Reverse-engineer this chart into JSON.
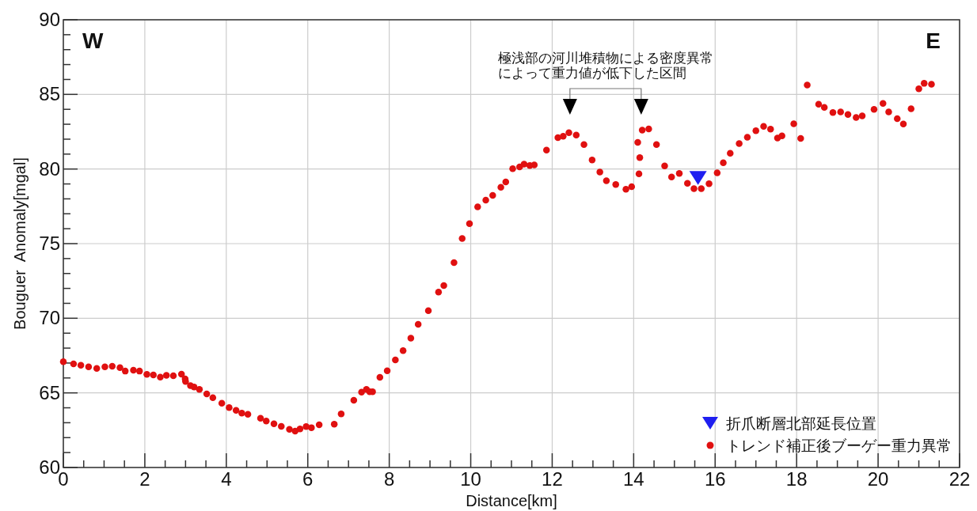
{
  "chart_data": {
    "type": "scatter",
    "xlabel": "Distance[km]",
    "ylabel": "Bouguer  Anomaly[mgal]",
    "xlim": [
      0,
      22
    ],
    "xticks": [
      0,
      2,
      4,
      6,
      8,
      10,
      12,
      14,
      16,
      18,
      20,
      22
    ],
    "ylim": [
      60,
      90
    ],
    "yticks": [
      60,
      65,
      70,
      75,
      80,
      85,
      90
    ],
    "grid": true,
    "legend": "bottom right",
    "annotations": [
      "W",
      "E",
      "極浅部の河川堆積物による密度異常によって重力値が低下した区間"
    ],
    "series": [
      {
        "name": "折爪断層北部延長位置",
        "color": "#1f1ff0",
        "marker": "triangle",
        "x": [
          15.58
        ],
        "values": [
          79.4
        ]
      },
      {
        "name": "トレンド補正後ブーゲー重力異常",
        "color": "#e01010",
        "marker": "circle",
        "x": [
          0,
          0.25,
          0.43,
          0.62,
          0.82,
          1.02,
          1.2,
          1.39,
          1.52,
          1.72,
          1.87,
          2.05,
          2.21,
          2.38,
          2.53,
          2.7,
          2.9,
          2.99,
          3.0,
          3.12,
          3.21,
          3.34,
          3.52,
          3.67,
          3.89,
          4.07,
          4.24,
          4.38,
          4.53,
          4.84,
          4.98,
          5.17,
          5.35,
          5.55,
          5.69,
          5.81,
          5.96,
          6.09,
          6.28,
          6.65,
          6.82,
          7.13,
          7.32,
          7.44,
          7.52,
          7.59,
          7.77,
          7.95,
          8.15,
          8.34,
          8.53,
          8.71,
          8.96,
          9.21,
          9.34,
          9.59,
          9.79,
          9.97,
          10.17,
          10.37,
          10.54,
          10.74,
          10.86,
          11.03,
          11.2,
          11.31,
          11.45,
          11.56,
          11.86,
          12.14,
          12.27,
          12.41,
          12.59,
          12.78,
          12.98,
          13.17,
          13.33,
          13.56,
          13.81,
          13.95,
          14.13,
          14.15,
          14.1,
          14.21,
          14.37,
          14.56,
          14.76,
          14.93,
          15.12,
          15.32,
          15.48,
          15.66,
          15.85,
          16.05,
          16.2,
          16.37,
          16.59,
          16.79,
          17.0,
          17.19,
          17.36,
          17.53,
          17.64,
          17.93,
          18.1,
          18.26,
          18.54,
          18.68,
          18.89,
          19.08,
          19.26,
          19.46,
          19.61,
          19.9,
          20.12,
          20.26,
          20.47,
          20.62,
          20.81,
          21.0,
          21.13,
          21.31
        ],
        "values": [
          67.09,
          66.94,
          66.85,
          66.75,
          66.64,
          66.75,
          66.78,
          66.69,
          66.46,
          66.52,
          66.46,
          66.24,
          66.2,
          66.06,
          66.17,
          66.15,
          66.25,
          65.93,
          65.76,
          65.49,
          65.39,
          65.23,
          64.93,
          64.68,
          64.31,
          64.01,
          63.83,
          63.64,
          63.57,
          63.3,
          63.11,
          62.93,
          62.76,
          62.56,
          62.44,
          62.58,
          62.74,
          62.67,
          62.86,
          62.9,
          63.59,
          64.5,
          65.05,
          65.23,
          65.07,
          65.07,
          66.04,
          66.48,
          67.21,
          67.83,
          68.66,
          69.59,
          70.51,
          71.75,
          72.19,
          73.73,
          75.35,
          76.34,
          77.47,
          77.91,
          78.23,
          78.78,
          79.13,
          80.02,
          80.14,
          80.33,
          80.23,
          80.27,
          81.27,
          82.1,
          82.19,
          82.43,
          82.27,
          81.64,
          80.61,
          79.8,
          79.22,
          78.96,
          78.64,
          78.81,
          79.68,
          80.77,
          81.78,
          82.61,
          82.69,
          81.64,
          80.21,
          79.47,
          79.7,
          79.04,
          78.69,
          78.69,
          79.02,
          79.75,
          80.42,
          81.05,
          81.71,
          82.13,
          82.56,
          82.86,
          82.67,
          82.08,
          82.22,
          83.03,
          82.05,
          85.63,
          84.34,
          84.13,
          83.79,
          83.83,
          83.65,
          83.46,
          83.56,
          84.0,
          84.39,
          83.83,
          83.37,
          83.02,
          84.04,
          85.38,
          85.74,
          85.68
        ]
      }
    ]
  }
}
